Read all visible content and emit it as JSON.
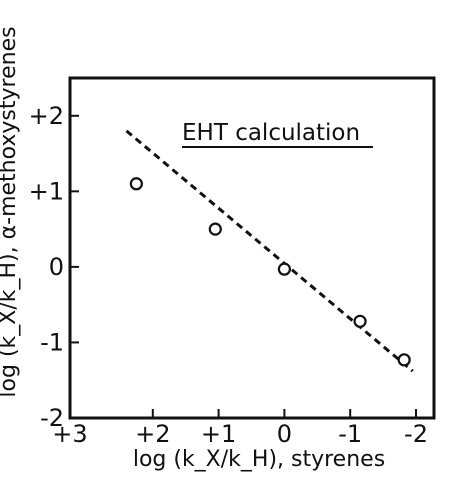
{
  "chart_data": {
    "type": "scatter",
    "title": "",
    "annotation": "EHT calculation",
    "xlabel": "log (k_X/k_H), styrenes",
    "ylabel": "log (k_X/k_H), α-methoxystyrenes",
    "xlim": [
      3,
      -2
    ],
    "ylim": [
      -2,
      2.5
    ],
    "x_ticks": [
      "+3",
      "+2",
      "+1",
      "0",
      "-1",
      "-2"
    ],
    "y_ticks": [
      "+2",
      "+1",
      "0",
      "-1",
      "-2"
    ],
    "x_tick_values": [
      3,
      2,
      1,
      0,
      -1,
      -2
    ],
    "y_tick_values": [
      2,
      1,
      0,
      -1,
      -2
    ],
    "grid": false,
    "series": [
      {
        "points": [
          {
            "x": 2.25,
            "y": 1.1
          },
          {
            "x": 1.05,
            "y": 0.5
          },
          {
            "x": 0.0,
            "y": -0.03
          },
          {
            "x": -1.15,
            "y": -0.72
          },
          {
            "x": -1.82,
            "y": -1.23
          }
        ]
      }
    ],
    "fit_line": {
      "style": "dashed",
      "points": [
        {
          "x": 2.4,
          "y": 1.8
        },
        {
          "x": -1.95,
          "y": -1.38
        }
      ]
    }
  }
}
